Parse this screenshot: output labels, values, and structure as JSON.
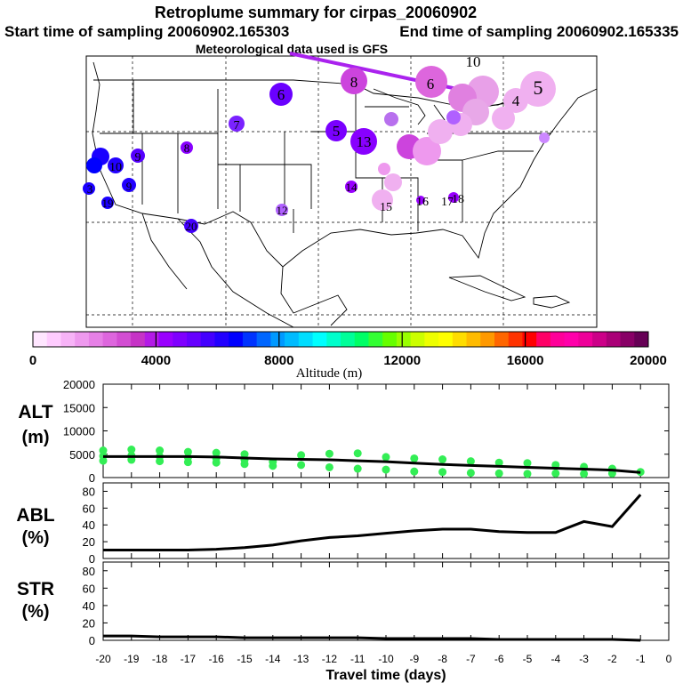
{
  "header": {
    "title": "Retroplume summary for cirpas_20060902",
    "start_label": "Start time of sampling 20060902.165303",
    "end_label": "End time of sampling 20060902.165335",
    "met_label": "Meteorological data used is GFS"
  },
  "colorbar": {
    "ticks": [
      "0",
      "4000",
      "8000",
      "12000",
      "16000",
      "20000"
    ],
    "label": "Altitude (m)",
    "colors": [
      "#ffe6ff",
      "#ffccff",
      "#f7b3f7",
      "#ee99ee",
      "#e680e6",
      "#dd66dd",
      "#d24dd2",
      "#c633c6",
      "#b31ae6",
      "#9900ff",
      "#7f00ff",
      "#6600ff",
      "#4400ff",
      "#2200ff",
      "#0000ff",
      "#0033ff",
      "#0066ff",
      "#0099ff",
      "#00bbff",
      "#00ddff",
      "#00ffff",
      "#00ffcc",
      "#00ff99",
      "#00ff66",
      "#33ff33",
      "#66ff00",
      "#99ff00",
      "#ccff00",
      "#eeff00",
      "#ffff00",
      "#ffdd00",
      "#ffbb00",
      "#ff9900",
      "#ff6600",
      "#ff3300",
      "#ff0000",
      "#ff0066",
      "#ff0099",
      "#ff00aa",
      "#ee0099",
      "#cc0088",
      "#aa0077",
      "#880066",
      "#660055"
    ]
  },
  "map": {
    "plume_labels": [
      {
        "text": "10",
        "color": "#cc88ff"
      },
      {
        "text": "8",
        "color": "#8800ff"
      },
      {
        "text": "6",
        "color": "#dd66dd"
      },
      {
        "text": "5",
        "color": "#f0a0f0"
      },
      {
        "text": "4",
        "color": "#ee99ee"
      },
      {
        "text": "6",
        "color": "#6a00ff"
      },
      {
        "text": "7",
        "color": "#7a22ff"
      },
      {
        "text": "5",
        "color": "#7a00ff"
      },
      {
        "text": "13",
        "color": "#8800ff"
      },
      {
        "text": "8",
        "color": "#9900ff"
      },
      {
        "text": "9",
        "color": "#5500ff"
      },
      {
        "text": "10",
        "color": "#2200ff"
      },
      {
        "text": "3",
        "color": "#3300ff"
      },
      {
        "text": "9",
        "color": "#3300ff"
      },
      {
        "text": "14",
        "color": "#9900ff"
      },
      {
        "text": "12",
        "color": "#b060ff"
      },
      {
        "text": "20",
        "color": "#4400ff"
      },
      {
        "text": "15",
        "color": "#e070ff"
      },
      {
        "text": "16",
        "color": "#9900ff"
      },
      {
        "text": "17",
        "color": "#9900ff"
      },
      {
        "text": "18",
        "color": "#9900ff"
      },
      {
        "text": "19",
        "color": "#1a00ff"
      }
    ]
  },
  "chart_data": [
    {
      "type": "scatter",
      "panel": "ALT",
      "ylabel": "ALT (m)",
      "ylim": [
        0,
        20000
      ],
      "yticks": [
        "20000",
        "15000",
        "10000",
        "5000",
        "0"
      ],
      "line_x": [
        -20,
        -19,
        -18,
        -17,
        -16,
        -15,
        -14,
        -13,
        -12,
        -11,
        -10,
        -9,
        -8,
        -7,
        -6,
        -5,
        -4,
        -3,
        -2,
        -1
      ],
      "line_y": [
        4500,
        4500,
        4500,
        4500,
        4400,
        4200,
        4000,
        3900,
        3800,
        3600,
        3400,
        3100,
        2800,
        2600,
        2400,
        2200,
        2000,
        1800,
        1600,
        1100
      ],
      "points_x": [
        -20,
        -20,
        -20,
        -19,
        -19,
        -19,
        -18,
        -18,
        -18,
        -17,
        -17,
        -17,
        -16,
        -16,
        -16,
        -15,
        -15,
        -15,
        -14,
        -14,
        -13,
        -13,
        -12,
        -12,
        -11,
        -11,
        -10,
        -10,
        -9,
        -9,
        -8,
        -8,
        -7,
        -7,
        -6,
        -6,
        -5,
        -5,
        -4,
        -4,
        -3,
        -3,
        -2,
        -2,
        -1
      ],
      "points_y": [
        5800,
        4600,
        3600,
        6000,
        4700,
        3800,
        5800,
        4500,
        3500,
        5500,
        4300,
        3300,
        5300,
        4100,
        3200,
        5000,
        3800,
        2900,
        3400,
        2500,
        4800,
        2700,
        5100,
        2200,
        5200,
        1900,
        4400,
        1700,
        4100,
        1300,
        3900,
        1200,
        3500,
        1000,
        3200,
        900,
        3100,
        800,
        2700,
        900,
        2300,
        800,
        1900,
        900,
        1200
      ],
      "point_color": "#33ee55"
    },
    {
      "type": "line",
      "panel": "ABL",
      "ylabel": "ABL (%)",
      "ylim": [
        0,
        90
      ],
      "yticks": [
        "80",
        "60",
        "40",
        "20",
        "0"
      ],
      "x": [
        -20,
        -19,
        -18,
        -17,
        -16,
        -15,
        -14,
        -13,
        -12,
        -11,
        -10,
        -9,
        -8,
        -7,
        -6,
        -5,
        -4,
        -3,
        -2,
        -1
      ],
      "y": [
        10,
        10,
        10,
        10,
        11,
        13,
        16,
        21,
        25,
        27,
        30,
        33,
        35,
        35,
        32,
        31,
        31,
        44,
        38,
        76
      ]
    },
    {
      "type": "line",
      "panel": "STR",
      "ylabel": "STR (%)",
      "ylim": [
        0,
        90
      ],
      "yticks": [
        "80",
        "60",
        "40",
        "20",
        "0"
      ],
      "x": [
        -20,
        -19,
        -18,
        -17,
        -16,
        -15,
        -14,
        -13,
        -12,
        -11,
        -10,
        -9,
        -8,
        -7,
        -6,
        -5,
        -4,
        -3,
        -2,
        -1
      ],
      "y": [
        5,
        5,
        4,
        4,
        4,
        3,
        3,
        3,
        3,
        3,
        2,
        2,
        2,
        2,
        1,
        1,
        1,
        1,
        1,
        0
      ],
      "xlabel": "Travel time (days)",
      "xticks": [
        "-20",
        "-19",
        "-18",
        "-17",
        "-16",
        "-15",
        "-14",
        "-13",
        "-12",
        "-11",
        "-10",
        "-9",
        "-8",
        "-7",
        "-6",
        "-5",
        "-4",
        "-3",
        "-2",
        "-1",
        "0"
      ]
    }
  ]
}
